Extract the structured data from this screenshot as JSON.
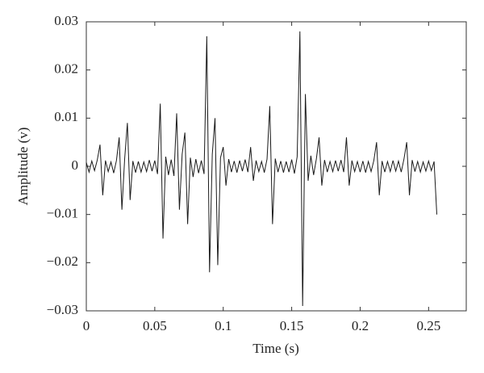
{
  "chart_data": {
    "type": "line",
    "xlabel": "Time (s)",
    "ylabel": "Amplitude (v)",
    "color": "#1a1a1a",
    "xlim": [
      0,
      0.2775
    ],
    "xticks": [
      0,
      0.05,
      0.1,
      0.15,
      0.2,
      0.25
    ],
    "ylim": [
      -0.03,
      0.03
    ],
    "yticks": [
      {
        "value": -0.03,
        "label": "−0.03"
      },
      {
        "value": -0.02,
        "label": "−0.02"
      },
      {
        "value": -0.01,
        "label": "−0.01"
      },
      0,
      0.01,
      0.02,
      0.03
    ],
    "x": [
      0,
      0.002,
      0.004,
      0.006,
      0.008,
      0.01,
      0.012,
      0.014,
      0.016,
      0.018,
      0.02,
      0.022,
      0.024,
      0.026,
      0.028,
      0.03,
      0.032,
      0.034,
      0.036,
      0.038,
      0.04,
      0.042,
      0.044,
      0.046,
      0.048,
      0.05,
      0.052,
      0.054,
      0.056,
      0.058,
      0.06,
      0.062,
      0.064,
      0.066,
      0.068,
      0.07,
      0.072,
      0.074,
      0.076,
      0.078,
      0.08,
      0.082,
      0.084,
      0.086,
      0.088,
      0.09,
      0.092,
      0.094,
      0.096,
      0.098,
      0.1,
      0.102,
      0.104,
      0.106,
      0.108,
      0.11,
      0.112,
      0.114,
      0.116,
      0.118,
      0.12,
      0.122,
      0.124,
      0.126,
      0.128,
      0.13,
      0.132,
      0.134,
      0.136,
      0.138,
      0.14,
      0.142,
      0.144,
      0.146,
      0.148,
      0.15,
      0.152,
      0.154,
      0.156,
      0.158,
      0.16,
      0.162,
      0.164,
      0.166,
      0.168,
      0.17,
      0.172,
      0.174,
      0.176,
      0.178,
      0.18,
      0.182,
      0.184,
      0.186,
      0.188,
      0.19,
      0.192,
      0.194,
      0.196,
      0.198,
      0.2,
      0.202,
      0.204,
      0.206,
      0.208,
      0.21,
      0.212,
      0.214,
      0.216,
      0.218,
      0.22,
      0.222,
      0.224,
      0.226,
      0.228,
      0.23,
      0.232,
      0.234,
      0.236,
      0.238,
      0.24,
      0.242,
      0.244,
      0.246,
      0.248,
      0.25,
      0.252,
      0.254,
      0.256
    ],
    "values": [
      0.0008,
      -0.0012,
      0.0011,
      -0.0009,
      0.0013,
      0.0045,
      -0.006,
      0.0012,
      -0.0011,
      0.0009,
      -0.0014,
      0.0012,
      0.006,
      -0.009,
      0.0015,
      0.009,
      -0.007,
      0.0011,
      -0.0013,
      0.001,
      -0.0012,
      0.0009,
      -0.0011,
      0.0013,
      -0.001,
      0.0012,
      -0.0016,
      0.013,
      -0.015,
      0.002,
      -0.0018,
      0.0014,
      -0.002,
      0.011,
      -0.009,
      0.0025,
      0.007,
      -0.012,
      0.0018,
      -0.0022,
      0.0015,
      -0.0014,
      0.0012,
      -0.0016,
      0.027,
      -0.022,
      0.0025,
      0.01,
      -0.0205,
      0.0018,
      0.004,
      -0.004,
      0.0015,
      -0.0012,
      0.0011,
      -0.0013,
      0.0012,
      -0.001,
      0.0014,
      -0.0012,
      0.004,
      -0.003,
      0.0012,
      -0.0011,
      0.001,
      -0.0013,
      0.0015,
      0.0125,
      -0.012,
      0.0016,
      -0.0012,
      0.0011,
      -0.0013,
      0.001,
      -0.0012,
      0.0014,
      -0.0015,
      0.002,
      0.028,
      -0.029,
      0.015,
      -0.003,
      0.0022,
      -0.0018,
      0.0015,
      0.006,
      -0.004,
      0.0013,
      -0.0012,
      0.001,
      -0.0011,
      0.0012,
      -0.001,
      0.0013,
      -0.0012,
      0.006,
      -0.004,
      0.0012,
      -0.0011,
      0.001,
      -0.0012,
      0.0011,
      -0.0013,
      0.001,
      -0.0011,
      0.0012,
      0.005,
      -0.006,
      0.0011,
      -0.0012,
      0.001,
      -0.0011,
      0.0012,
      -0.001,
      0.0011,
      -0.0012,
      0.0015,
      0.005,
      -0.006,
      0.0013,
      -0.0011,
      0.001,
      -0.0012,
      0.0009,
      -0.001,
      0.0011,
      -0.0009,
      0.001,
      -0.01
    ]
  }
}
